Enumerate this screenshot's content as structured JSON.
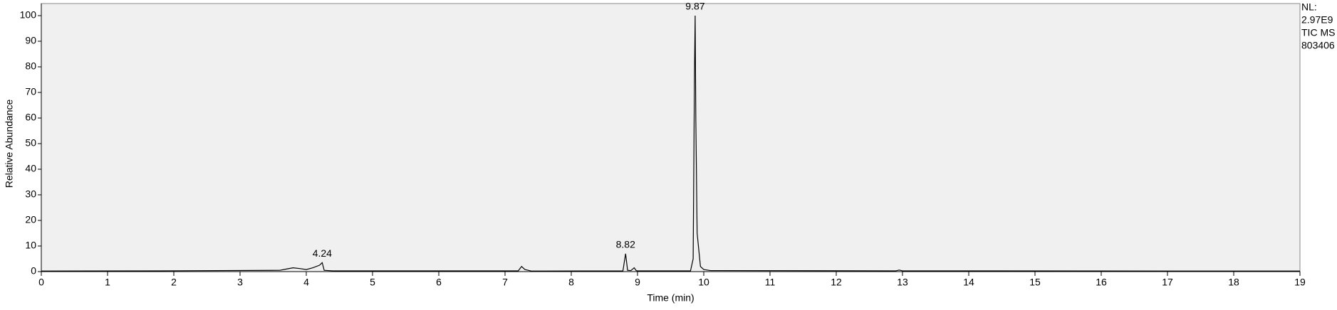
{
  "chart_data": {
    "type": "line",
    "ylabel": "Relative Abundance",
    "xlabel": "Time (min)",
    "annotations": [
      "NL:",
      "2.97E9",
      "TIC MS",
      "803406"
    ],
    "x": [
      0,
      1.8,
      3.6,
      3.7,
      3.8,
      3.9,
      4.0,
      4.1,
      4.2,
      4.24,
      4.27,
      4.4,
      7.2,
      7.25,
      7.3,
      7.4,
      8.78,
      8.82,
      8.85,
      8.9,
      8.95,
      8.98,
      9.0,
      9.8,
      9.84,
      9.86,
      9.87,
      9.88,
      9.9,
      9.95,
      10.0,
      10.1,
      12.9,
      12.95,
      13.0,
      19
    ],
    "series": [
      {
        "color": "#000000",
        "values": [
          0.2,
          0.3,
          0.5,
          1,
          1.5,
          1.2,
          0.8,
          1.5,
          2.5,
          3.5,
          0.5,
          0.3,
          0.3,
          2,
          0.8,
          0.2,
          0.3,
          7,
          0.5,
          0.4,
          1.5,
          0.4,
          0.3,
          0.3,
          5,
          78,
          100,
          60,
          15,
          2,
          0.8,
          0.4,
          0.3,
          0.6,
          0.3,
          0.2
        ]
      }
    ],
    "peak_labels": [
      {
        "x": 4.24,
        "y": 3.5
      },
      {
        "x": 8.82,
        "y": 7
      },
      {
        "x": 9.87,
        "y": 100
      }
    ],
    "xlim": [
      0,
      19
    ],
    "xticks": [
      0,
      1,
      2,
      3,
      4,
      5,
      6,
      7,
      8,
      9,
      10,
      11,
      12,
      13,
      14,
      15,
      16,
      17,
      18,
      19
    ],
    "ylim": [
      0,
      100
    ],
    "yticks": [
      0,
      10,
      20,
      30,
      40,
      50,
      60,
      70,
      80,
      90,
      100
    ],
    "plot_background": "#f0f0f0"
  }
}
